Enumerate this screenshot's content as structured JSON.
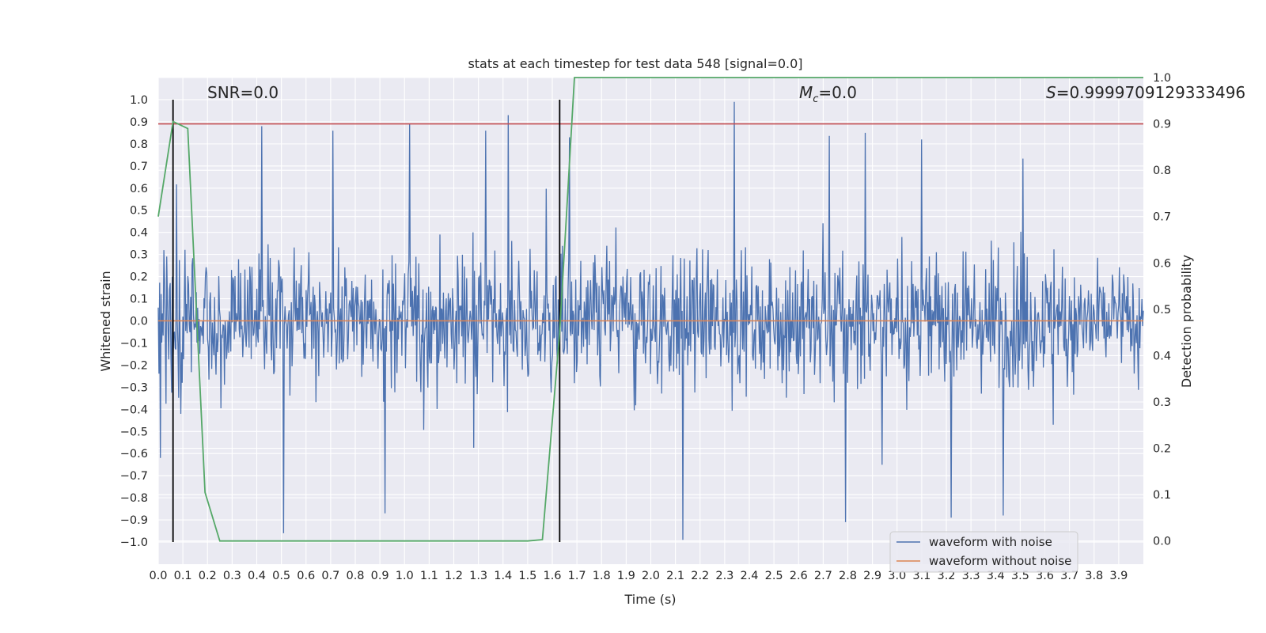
{
  "chart_data": {
    "type": "line",
    "title": "stats at each timestep for test data 548 [signal=0.0]",
    "xlabel": "Time (s)",
    "ylabel": "Whitened strain",
    "y2label": "Detection probability",
    "xlim": [
      0.0,
      4.0
    ],
    "ylim": [
      -1.1,
      1.1
    ],
    "y2lim": [
      -0.05,
      1.0
    ],
    "x_ticks": [
      0.0,
      0.1,
      0.2,
      0.3,
      0.4,
      0.5,
      0.6,
      0.7,
      0.8,
      0.9,
      1.0,
      1.1,
      1.2,
      1.3,
      1.4,
      1.5,
      1.6,
      1.7,
      1.8,
      1.9,
      2.0,
      2.1,
      2.2,
      2.3,
      2.4,
      2.5,
      2.6,
      2.7,
      2.8,
      2.9,
      3.0,
      3.1,
      3.2,
      3.3,
      3.4,
      3.5,
      3.6,
      3.7,
      3.8,
      3.9
    ],
    "x_tick_labels": [
      "0.0",
      "0.1",
      "0.2",
      "0.3",
      "0.4",
      "0.5",
      "0.6",
      "0.7",
      "0.8",
      "0.9",
      "1.0",
      "1.1",
      "1.2",
      "1.3",
      "1.4",
      "1.5",
      "1.6",
      "1.7",
      "1.8",
      "1.9",
      "2.0",
      "2.1",
      "2.2",
      "2.3",
      "2.4",
      "2.5",
      "2.6",
      "2.7",
      "2.8",
      "2.9",
      "3.0",
      "3.1",
      "3.2",
      "3.3",
      "3.4",
      "3.5",
      "3.6",
      "3.7",
      "3.8",
      "3.9"
    ],
    "y_ticks": [
      1.0,
      0.9,
      0.8,
      0.7,
      0.6,
      0.5,
      0.4,
      0.3,
      0.2,
      0.1,
      0.0,
      -0.1,
      -0.2,
      -0.3,
      -0.4,
      -0.5,
      -0.6,
      -0.7,
      -0.8,
      -0.9,
      -1.0
    ],
    "y_tick_labels": [
      "1.0",
      "0.9",
      "0.8",
      "0.7",
      "0.6",
      "0.5",
      "0.4",
      "0.3",
      "0.2",
      "0.1",
      "0.0",
      "−0.1",
      "−0.2",
      "−0.3",
      "−0.4",
      "−0.5",
      "−0.6",
      "−0.7",
      "−0.8",
      "−0.9",
      "−1.0"
    ],
    "y2_ticks": [
      1.0,
      0.9,
      0.8,
      0.7,
      0.6,
      0.5,
      0.4,
      0.3,
      0.2,
      0.1,
      0.0
    ],
    "y2_tick_labels": [
      "1.0",
      "0.9",
      "0.8",
      "0.7",
      "0.6",
      "0.5",
      "0.4",
      "0.3",
      "0.2",
      "0.1",
      "0.0"
    ],
    "noise_waveform": {
      "name": "waveform with noise",
      "color": "#4c72b0",
      "description_of_values": "dense noise, roughly symmetric around 0, typical amplitude 0.3-0.5",
      "spikes": [
        [
          0.01,
          0.92
        ],
        [
          0.01,
          -0.62
        ],
        [
          0.42,
          0.88
        ],
        [
          0.71,
          0.86
        ],
        [
          1.02,
          0.89
        ],
        [
          1.42,
          0.93
        ],
        [
          2.34,
          0.99
        ],
        [
          2.13,
          -0.99
        ],
        [
          0.51,
          -0.96
        ],
        [
          2.79,
          -0.91
        ],
        [
          3.22,
          -0.89
        ],
        [
          3.43,
          -0.88
        ],
        [
          0.92,
          -0.87
        ],
        [
          1.33,
          0.86
        ],
        [
          1.67,
          0.83
        ],
        [
          2.87,
          0.85
        ],
        [
          3.1,
          0.82
        ]
      ],
      "seed": 548,
      "samples": 1400
    },
    "clean_waveform": {
      "name": "waveform without noise",
      "color": "#dd8452",
      "values_constant": 0.0
    },
    "threshold_line": {
      "color": "#c44e52",
      "y2": 0.9
    },
    "vertical_markers": {
      "color": "#000000",
      "x": [
        0.06,
        1.63
      ]
    },
    "detection_probability": {
      "color": "#55a868",
      "x": [
        0.0,
        0.06,
        0.12,
        0.19,
        0.25,
        1.5,
        1.56,
        1.63,
        1.69,
        4.0
      ],
      "y": [
        0.7,
        0.905,
        0.89,
        0.105,
        0.0,
        0.0,
        0.003,
        0.45,
        1.0,
        1.0
      ]
    },
    "annotations": {
      "snr": "SNR=0.0",
      "mc_symbol": "M",
      "mc_sub": "c",
      "mc_value": "=0.0",
      "s_symbol": "S",
      "s_value": "=0.9999709129333496"
    },
    "legend": {
      "position": "lower right",
      "entries": [
        "waveform with noise",
        "waveform without noise"
      ]
    }
  }
}
